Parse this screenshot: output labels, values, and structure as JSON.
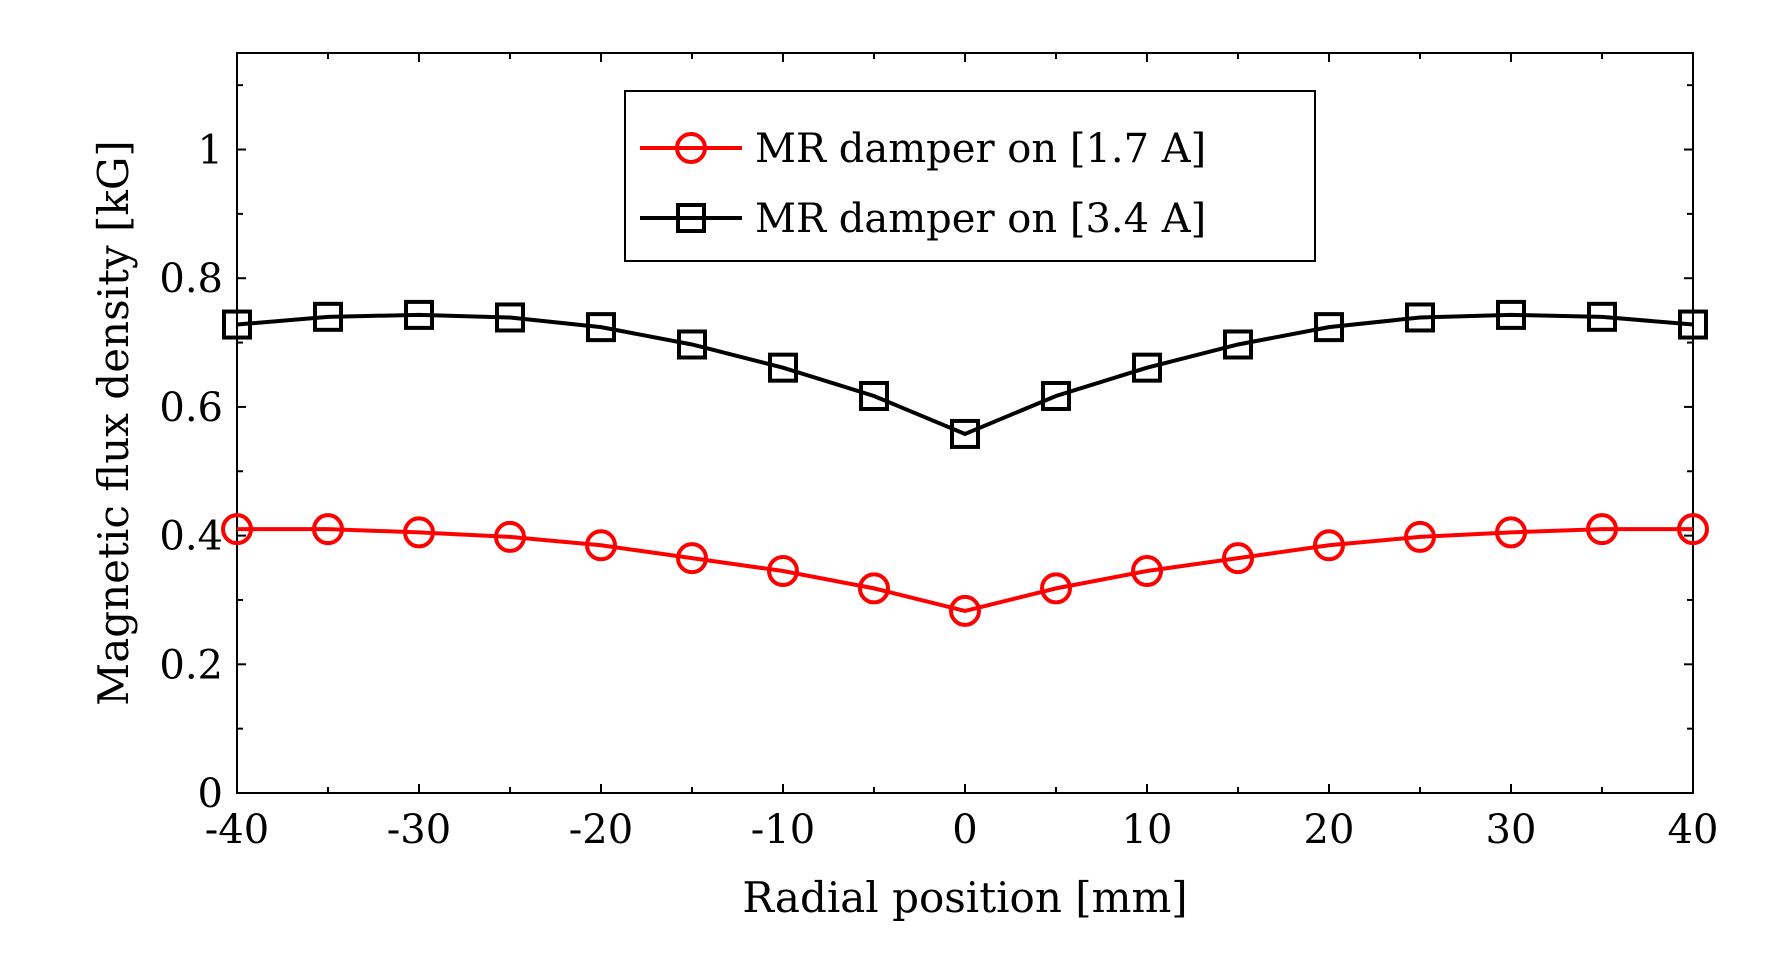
{
  "chart_data": {
    "type": "line",
    "title": "",
    "xlabel": "Radial position [mm]",
    "ylabel": "Magnetic flux density [kG]",
    "xlim": [
      -40,
      40
    ],
    "ylim": [
      0,
      1.15
    ],
    "xticks": [
      -40,
      -30,
      -20,
      -10,
      0,
      10,
      20,
      30,
      40
    ],
    "xtick_labels": [
      "-40",
      "-30",
      "-20",
      "-10",
      "0",
      "10",
      "20",
      "30",
      "40"
    ],
    "yticks": [
      0,
      0.2,
      0.4,
      0.6,
      0.8,
      1
    ],
    "ytick_labels": [
      "0",
      "0.2",
      "0.4",
      "0.6",
      "0.8",
      "1"
    ],
    "grid": false,
    "legend_position": "top-center",
    "x": [
      -40,
      -35,
      -30,
      -25,
      -20,
      -15,
      -10,
      -5,
      0,
      5,
      10,
      15,
      20,
      25,
      30,
      35,
      40
    ],
    "series": [
      {
        "name": "MR damper on [1.7 A]",
        "color": "#ff0000",
        "marker": "circle",
        "values": [
          0.41,
          0.41,
          0.405,
          0.398,
          0.385,
          0.365,
          0.345,
          0.318,
          0.283,
          0.318,
          0.345,
          0.365,
          0.385,
          0.398,
          0.405,
          0.41,
          0.41
        ]
      },
      {
        "name": "MR damper on [3.4 A]",
        "color": "#000000",
        "marker": "square",
        "values": [
          0.728,
          0.74,
          0.743,
          0.739,
          0.724,
          0.697,
          0.661,
          0.617,
          0.558,
          0.617,
          0.661,
          0.697,
          0.724,
          0.739,
          0.743,
          0.74,
          0.728
        ]
      }
    ]
  }
}
